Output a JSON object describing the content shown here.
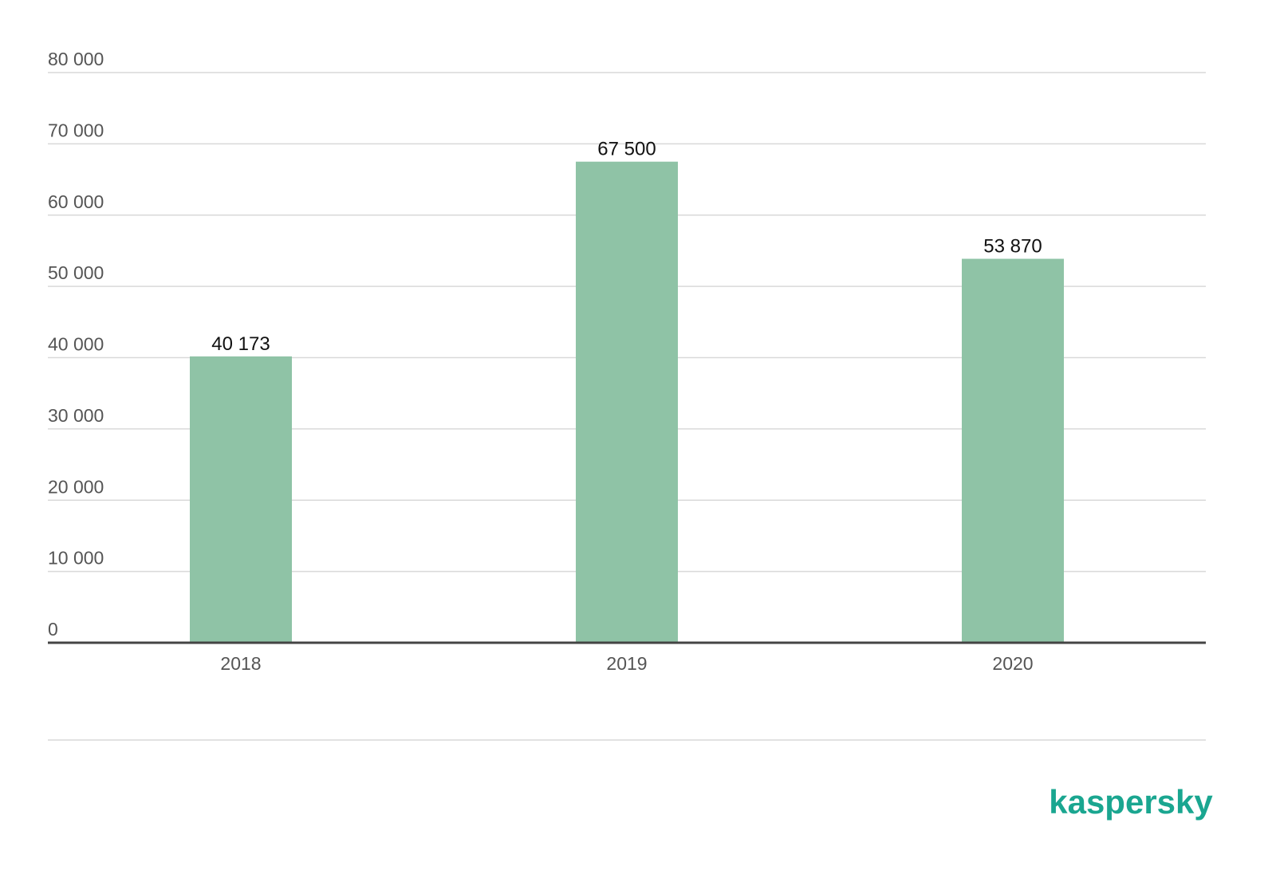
{
  "chart_data": {
    "type": "bar",
    "categories": [
      "2018",
      "2019",
      "2020"
    ],
    "values": [
      40173,
      67500,
      53870
    ],
    "data_labels": [
      "40 173",
      "67 500",
      "53 870"
    ],
    "title": "",
    "xlabel": "",
    "ylabel": "",
    "ylim": [
      0,
      80000
    ],
    "yticks": [
      0,
      10000,
      20000,
      30000,
      40000,
      50000,
      60000,
      70000,
      80000
    ],
    "ytick_labels": [
      "0",
      "10 000",
      "20 000",
      "30 000",
      "40 000",
      "50 000",
      "60 000",
      "70 000",
      "80 000"
    ],
    "grid": true,
    "legend": "none",
    "colors": {
      "bar": "#8fc3a6",
      "grid": "#d9d9d9",
      "axis": "#444444",
      "tick_text": "#555555",
      "data_label": "#111111",
      "brand": "#1aa690"
    }
  },
  "branding": {
    "logo_text": "kaspersky"
  }
}
